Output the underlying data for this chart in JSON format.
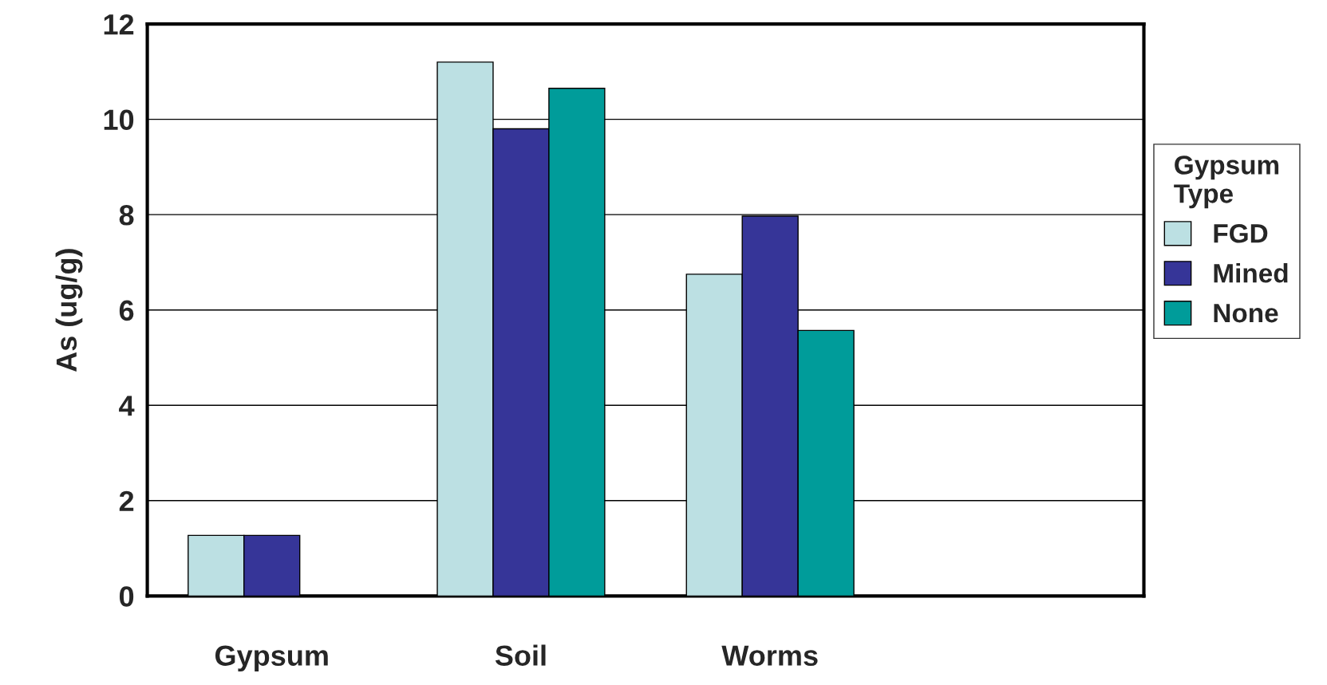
{
  "chart_data": {
    "type": "bar",
    "ylabel": "As (ug/g)",
    "legend_title": "Gypsum Type",
    "categories": [
      "Gypsum",
      "Soil",
      "Worms",
      null
    ],
    "series": [
      {
        "name": "FGD",
        "color": "#bce0e3",
        "values": [
          1.27,
          11.2,
          6.75,
          null
        ]
      },
      {
        "name": "Mined",
        "color": "#363598",
        "values": [
          1.27,
          9.8,
          7.97,
          null
        ]
      },
      {
        "name": "None",
        "color": "#009c9a",
        "values": [
          null,
          10.65,
          5.57,
          null
        ]
      }
    ],
    "ylim": [
      0,
      12
    ],
    "yticks": [
      0,
      2,
      4,
      6,
      8,
      10,
      12
    ],
    "grid": "y",
    "legend": "right"
  }
}
